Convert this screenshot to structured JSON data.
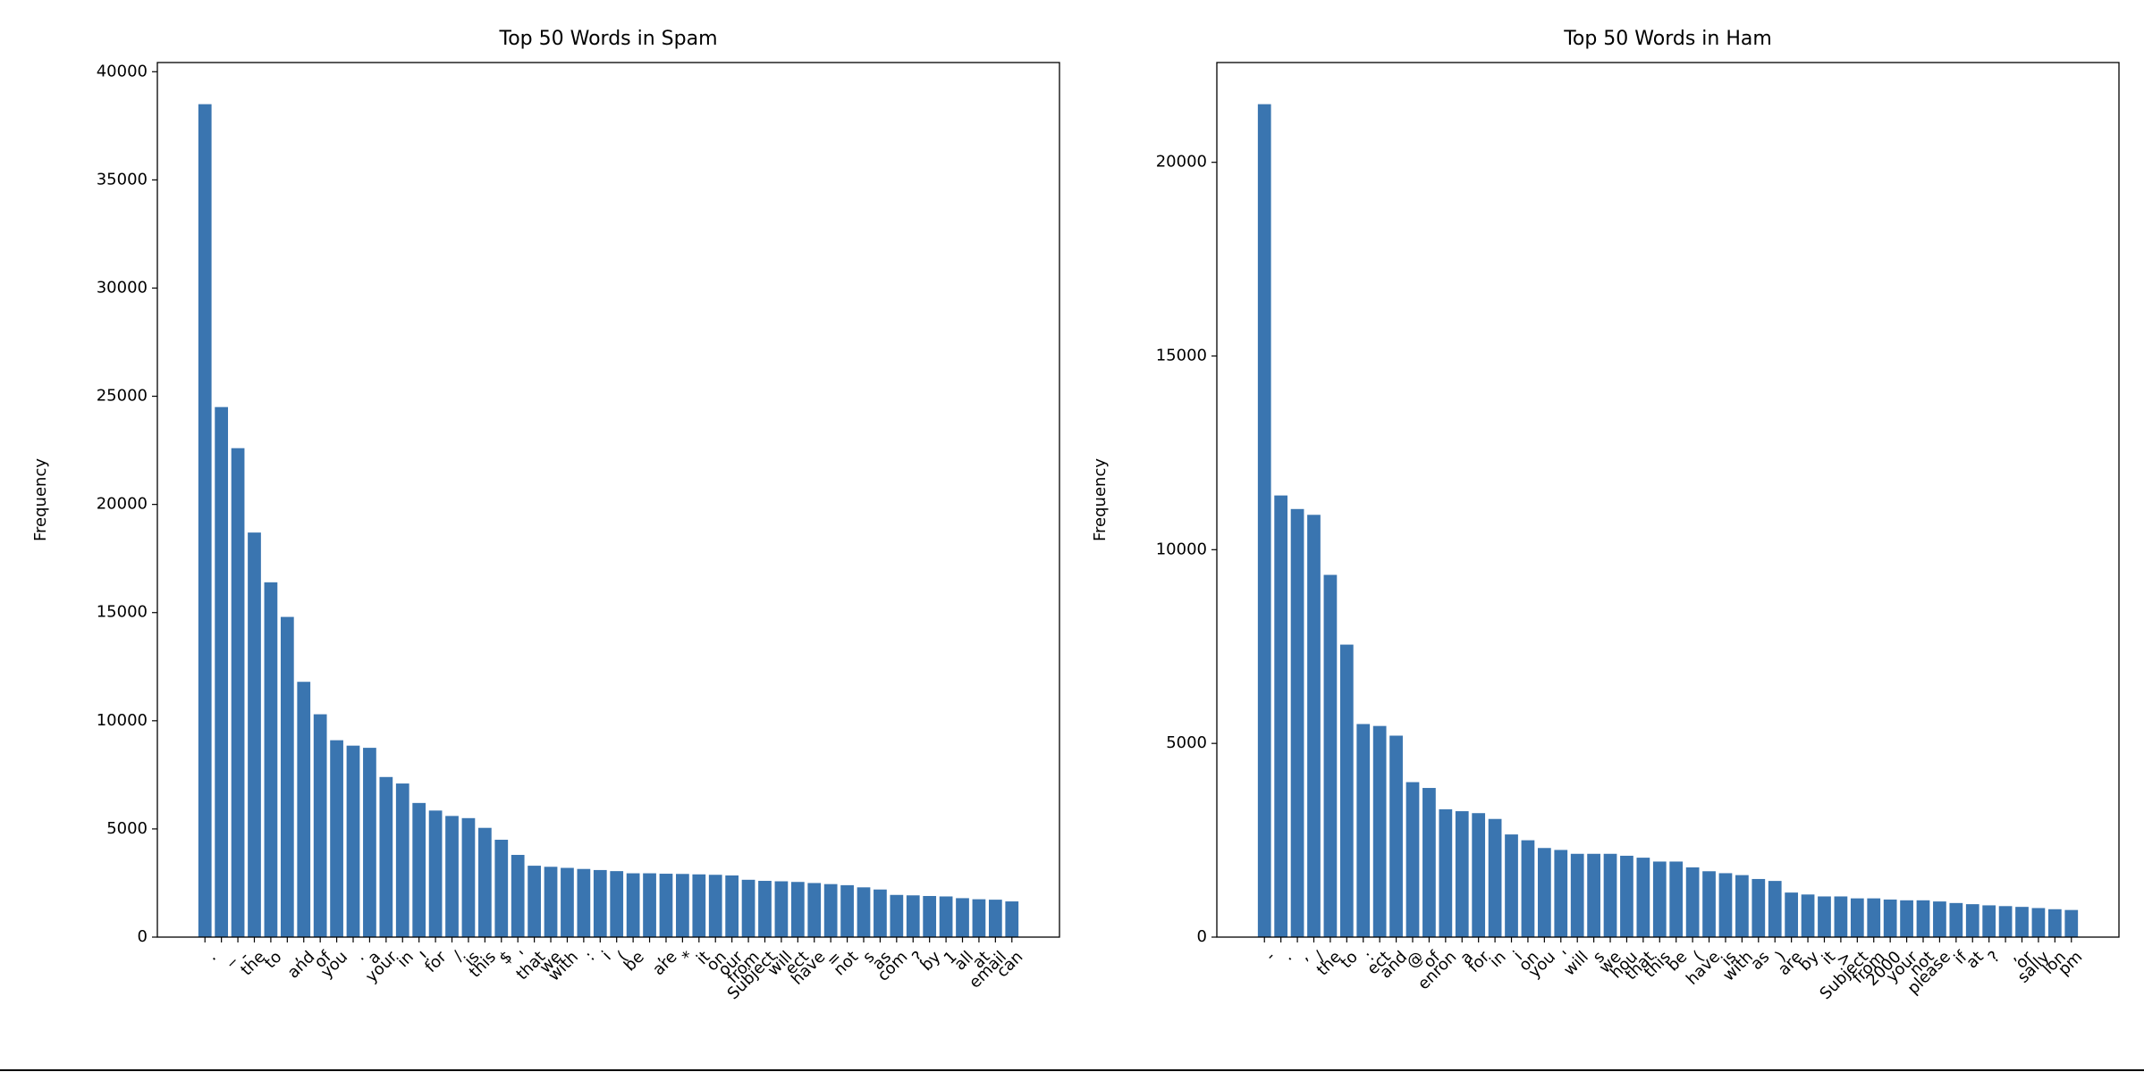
{
  "chart_data": [
    {
      "type": "bar",
      "title": "Top 50 Words in Spam",
      "ylabel": "Frequency",
      "color": "#3a75b0",
      "categories": [
        ".",
        "_",
        "-",
        "the",
        "to",
        ",",
        "and",
        "of",
        "you",
        ".",
        "a",
        "your",
        "in",
        "!",
        "for",
        "/",
        "is",
        "this",
        "$",
        "'",
        "that",
        "we",
        "with",
        ":",
        "i",
        "(",
        "be",
        ",",
        "are",
        "*",
        "it",
        "on",
        "our",
        "from",
        "Subject",
        "will",
        "ect",
        "have",
        "=",
        "not",
        "s",
        "as",
        "com",
        "?",
        "by",
        "1",
        "all",
        "at",
        "email",
        "can"
      ],
      "values": [
        38500,
        24500,
        22600,
        18700,
        16400,
        14800,
        11800,
        10300,
        9100,
        8850,
        8750,
        7400,
        7100,
        6200,
        5850,
        5600,
        5500,
        5050,
        4500,
        3800,
        3300,
        3250,
        3200,
        3150,
        3100,
        3050,
        2950,
        2950,
        2930,
        2920,
        2900,
        2880,
        2850,
        2650,
        2600,
        2580,
        2550,
        2500,
        2450,
        2400,
        2300,
        2200,
        1950,
        1930,
        1900,
        1880,
        1800,
        1750,
        1730,
        1650
      ],
      "ylim": [
        0,
        40425
      ],
      "yticks": [
        0,
        5000,
        10000,
        15000,
        20000,
        25000,
        30000,
        35000,
        40000
      ]
    },
    {
      "type": "bar",
      "title": "Top 50 Words in Ham",
      "ylabel": "Frequency",
      "color": "#3a75b0",
      "categories": [
        "-",
        ".",
        ",",
        "/",
        "the",
        "to",
        ":",
        "ect",
        "and",
        "@",
        "of",
        "enron",
        "a",
        "for",
        "in",
        "i",
        "on",
        "you",
        "'",
        "will",
        "s",
        "we",
        "hou",
        "that",
        "this",
        "be",
        "(",
        "have",
        "is",
        "with",
        "as",
        ")",
        "are",
        "by",
        "it",
        ">",
        "Subject",
        "from",
        "2000",
        "your",
        "not",
        "please",
        "if",
        "at",
        "?",
        ",",
        "or",
        "sally",
        "lon",
        "pm"
      ],
      "values": [
        21500,
        11400,
        11050,
        10900,
        9350,
        7550,
        5500,
        5450,
        5200,
        4000,
        3850,
        3300,
        3250,
        3200,
        3050,
        2650,
        2500,
        2300,
        2250,
        2150,
        2150,
        2150,
        2100,
        2050,
        1950,
        1950,
        1800,
        1700,
        1650,
        1600,
        1500,
        1450,
        1150,
        1100,
        1050,
        1050,
        1000,
        1000,
        970,
        950,
        950,
        920,
        880,
        850,
        820,
        800,
        780,
        750,
        720,
        700
      ],
      "ylim": [
        0,
        22575
      ],
      "yticks": [
        0,
        5000,
        10000,
        15000,
        20000
      ]
    }
  ]
}
